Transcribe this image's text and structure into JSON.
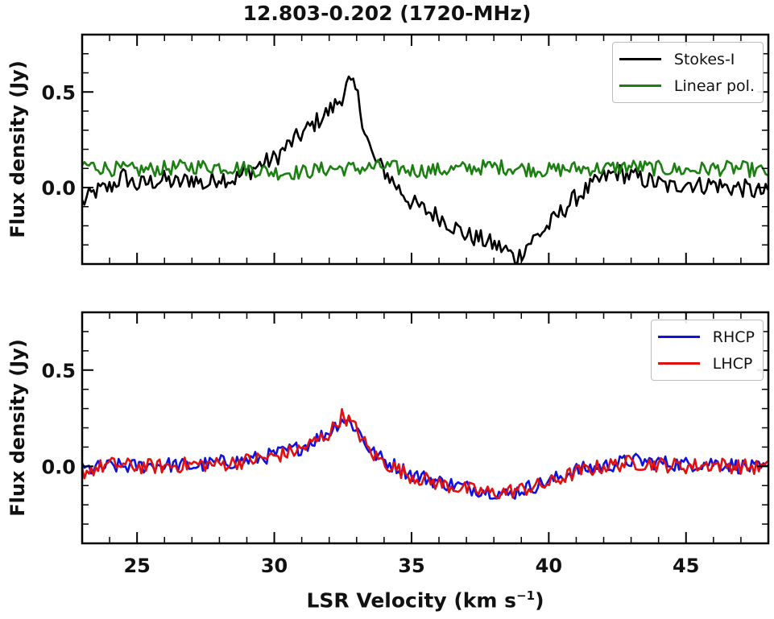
{
  "figure": {
    "title": "12.803-0.202 (1720-MHz)",
    "xlabel_main": "LSR Velocity (km s",
    "xlabel_sup": "−1",
    "xlabel_close": ")"
  },
  "chart_data": [
    {
      "type": "line",
      "panel": "top",
      "ylabel": "Flux density (Jy)",
      "xlim": [
        23,
        48
      ],
      "ylim": [
        -0.4,
        0.8
      ],
      "xticks": [
        25,
        30,
        35,
        40,
        45
      ],
      "yticks": [
        0.0,
        0.5
      ],
      "xtick_labels": [
        "25",
        "30",
        "35",
        "40",
        "45"
      ],
      "ytick_labels": [
        "0.0",
        "0.5"
      ],
      "legend_position": "top-right",
      "grid": false,
      "series": [
        {
          "name": "Stokes-I",
          "color": "#000000",
          "x": [
            23.0,
            23.5,
            24.0,
            24.5,
            25.0,
            25.5,
            26.0,
            26.5,
            27.0,
            27.5,
            28.0,
            28.5,
            29.0,
            29.5,
            30.0,
            30.5,
            31.0,
            31.5,
            32.0,
            32.4,
            32.7,
            33.0,
            33.3,
            33.6,
            34.0,
            34.5,
            35.0,
            35.5,
            36.0,
            36.5,
            37.0,
            37.5,
            38.0,
            38.5,
            38.8,
            39.2,
            39.6,
            40.0,
            40.5,
            41.0,
            41.5,
            42.0,
            42.5,
            43.0,
            43.5,
            44.0,
            44.5,
            45.0,
            45.5,
            46.0,
            46.5,
            47.0,
            47.5,
            48.0
          ],
          "y": [
            -0.08,
            -0.02,
            0.0,
            0.06,
            0.01,
            0.03,
            0.04,
            0.02,
            0.05,
            0.01,
            0.06,
            0.04,
            0.08,
            0.12,
            0.15,
            0.22,
            0.28,
            0.34,
            0.4,
            0.46,
            0.55,
            0.5,
            0.3,
            0.15,
            0.09,
            0.0,
            -0.08,
            -0.12,
            -0.15,
            -0.2,
            -0.25,
            -0.27,
            -0.3,
            -0.33,
            -0.38,
            -0.3,
            -0.25,
            -0.2,
            -0.12,
            -0.05,
            0.0,
            0.05,
            0.08,
            0.06,
            0.04,
            0.02,
            0.0,
            0.03,
            0.01,
            0.02,
            0.0,
            0.0,
            -0.02,
            -0.03
          ]
        },
        {
          "name": "Linear pol.",
          "color": "#1b7f12",
          "x": [
            23.0,
            24.0,
            25.0,
            26.0,
            27.0,
            28.0,
            29.0,
            30.0,
            31.0,
            32.0,
            33.0,
            34.0,
            35.0,
            36.0,
            37.0,
            38.0,
            39.0,
            40.0,
            41.0,
            42.0,
            43.0,
            44.0,
            45.0,
            46.0,
            47.0,
            48.0
          ],
          "y": [
            0.12,
            0.1,
            0.09,
            0.1,
            0.11,
            0.11,
            0.1,
            0.08,
            0.08,
            0.1,
            0.1,
            0.11,
            0.09,
            0.09,
            0.1,
            0.11,
            0.1,
            0.09,
            0.1,
            0.1,
            0.11,
            0.1,
            0.09,
            0.1,
            0.1,
            0.08
          ]
        }
      ]
    },
    {
      "type": "line",
      "panel": "bottom",
      "ylabel": "Flux density (Jy)",
      "xlim": [
        23,
        48
      ],
      "ylim": [
        -0.4,
        0.8
      ],
      "xticks": [
        25,
        30,
        35,
        40,
        45
      ],
      "yticks": [
        0.0,
        0.5
      ],
      "xtick_labels": [
        "25",
        "30",
        "35",
        "40",
        "45"
      ],
      "ytick_labels": [
        "0.0",
        "0.5"
      ],
      "legend_position": "top-right",
      "grid": false,
      "series": [
        {
          "name": "RHCP",
          "color": "#1010e0",
          "x": [
            23.0,
            24.0,
            25.0,
            26.0,
            27.0,
            28.0,
            29.0,
            30.0,
            31.0,
            31.5,
            32.0,
            32.5,
            33.0,
            33.5,
            34.0,
            35.0,
            36.0,
            37.0,
            38.0,
            38.5,
            39.0,
            40.0,
            41.0,
            42.0,
            43.0,
            44.0,
            45.0,
            46.0,
            47.0,
            48.0
          ],
          "y": [
            -0.02,
            0.0,
            0.0,
            0.01,
            0.0,
            0.02,
            0.03,
            0.06,
            0.1,
            0.14,
            0.18,
            0.25,
            0.2,
            0.08,
            0.03,
            -0.04,
            -0.08,
            -0.11,
            -0.13,
            -0.15,
            -0.12,
            -0.08,
            -0.02,
            0.0,
            0.03,
            0.02,
            0.01,
            0.02,
            0.0,
            -0.02
          ]
        },
        {
          "name": "LHCP",
          "color": "#e01010",
          "x": [
            23.0,
            24.0,
            25.0,
            26.0,
            27.0,
            28.0,
            29.0,
            30.0,
            31.0,
            31.5,
            32.0,
            32.5,
            33.0,
            33.5,
            34.0,
            35.0,
            36.0,
            37.0,
            38.0,
            38.5,
            39.0,
            40.0,
            41.0,
            42.0,
            43.0,
            44.0,
            45.0,
            46.0,
            47.0,
            48.0
          ],
          "y": [
            -0.03,
            0.01,
            0.0,
            0.0,
            0.01,
            0.01,
            0.03,
            0.05,
            0.09,
            0.13,
            0.17,
            0.27,
            0.19,
            0.07,
            0.02,
            -0.05,
            -0.09,
            -0.12,
            -0.14,
            -0.13,
            -0.12,
            -0.09,
            -0.03,
            0.0,
            0.02,
            0.01,
            0.0,
            0.01,
            0.0,
            -0.01
          ]
        }
      ]
    }
  ]
}
